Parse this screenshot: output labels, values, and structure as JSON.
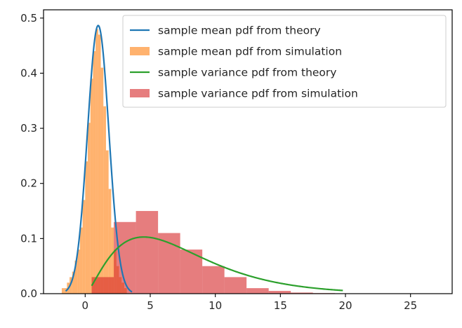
{
  "chart_data": {
    "type": "histogram+line",
    "title": "",
    "xlabel": "",
    "ylabel": "",
    "xlim": [
      -3.2,
      28.2
    ],
    "ylim": [
      0,
      0.515
    ],
    "xticks": [
      0,
      5,
      10,
      15,
      20,
      25
    ],
    "yticks": [
      0.0,
      0.1,
      0.2,
      0.3,
      0.4,
      0.5
    ],
    "xtick_labels": [
      "0",
      "5",
      "10",
      "15",
      "20",
      "25"
    ],
    "ytick_labels": [
      "0.0",
      "0.1",
      "0.2",
      "0.3",
      "0.4",
      "0.5"
    ],
    "grid": false,
    "legend_position": "upper right",
    "series": [
      {
        "name": "sample mean pdf from theory",
        "kind": "line",
        "color": "#1f77b4",
        "distribution": {
          "family": "normal",
          "mean": 1.0,
          "std": 0.82
        },
        "x_range": [
          -1.5,
          3.6
        ]
      },
      {
        "name": "sample mean pdf from simulation",
        "kind": "hist",
        "color": "#ff7f0e",
        "alpha": 0.6,
        "bins": [
          [
            -1.8,
            0.01
          ],
          [
            -1.6,
            0.01
          ],
          [
            -1.4,
            0.02
          ],
          [
            -1.2,
            0.03
          ],
          [
            -1.0,
            0.04
          ],
          [
            -0.8,
            0.06
          ],
          [
            -0.6,
            0.08
          ],
          [
            -0.4,
            0.12
          ],
          [
            -0.2,
            0.17
          ],
          [
            0.0,
            0.24
          ],
          [
            0.2,
            0.31
          ],
          [
            0.4,
            0.39
          ],
          [
            0.6,
            0.44
          ],
          [
            0.8,
            0.48
          ],
          [
            1.0,
            0.47
          ],
          [
            1.2,
            0.41
          ],
          [
            1.4,
            0.34
          ],
          [
            1.6,
            0.26
          ],
          [
            1.8,
            0.19
          ],
          [
            2.0,
            0.12
          ],
          [
            2.2,
            0.08
          ],
          [
            2.4,
            0.05
          ],
          [
            2.6,
            0.03
          ],
          [
            2.8,
            0.02
          ],
          [
            3.0,
            0.01
          ]
        ],
        "bin_width": 0.2
      },
      {
        "name": "sample variance pdf from theory",
        "kind": "line",
        "color": "#2ca02c",
        "distribution": {
          "family": "scaled-chi-square",
          "df": 5,
          "scale": 1.5
        },
        "x_range": [
          0.5,
          19.8
        ]
      },
      {
        "name": "sample variance pdf from simulation",
        "kind": "hist",
        "color": "#d62728",
        "alpha": 0.6,
        "bins": [
          [
            0.5,
            0.03
          ],
          [
            2.2,
            0.13
          ],
          [
            3.9,
            0.15
          ],
          [
            5.6,
            0.11
          ],
          [
            7.3,
            0.08
          ],
          [
            9.0,
            0.05
          ],
          [
            10.7,
            0.03
          ],
          [
            12.4,
            0.01
          ],
          [
            14.1,
            0.005
          ],
          [
            15.8,
            0.002
          ],
          [
            17.5,
            0.001
          ],
          [
            19.2,
            0.0005
          ],
          [
            20.9,
            0.0003
          ],
          [
            22.6,
            0.0002
          ],
          [
            24.3,
            0.0001
          ]
        ],
        "bin_width": 1.7
      }
    ]
  }
}
